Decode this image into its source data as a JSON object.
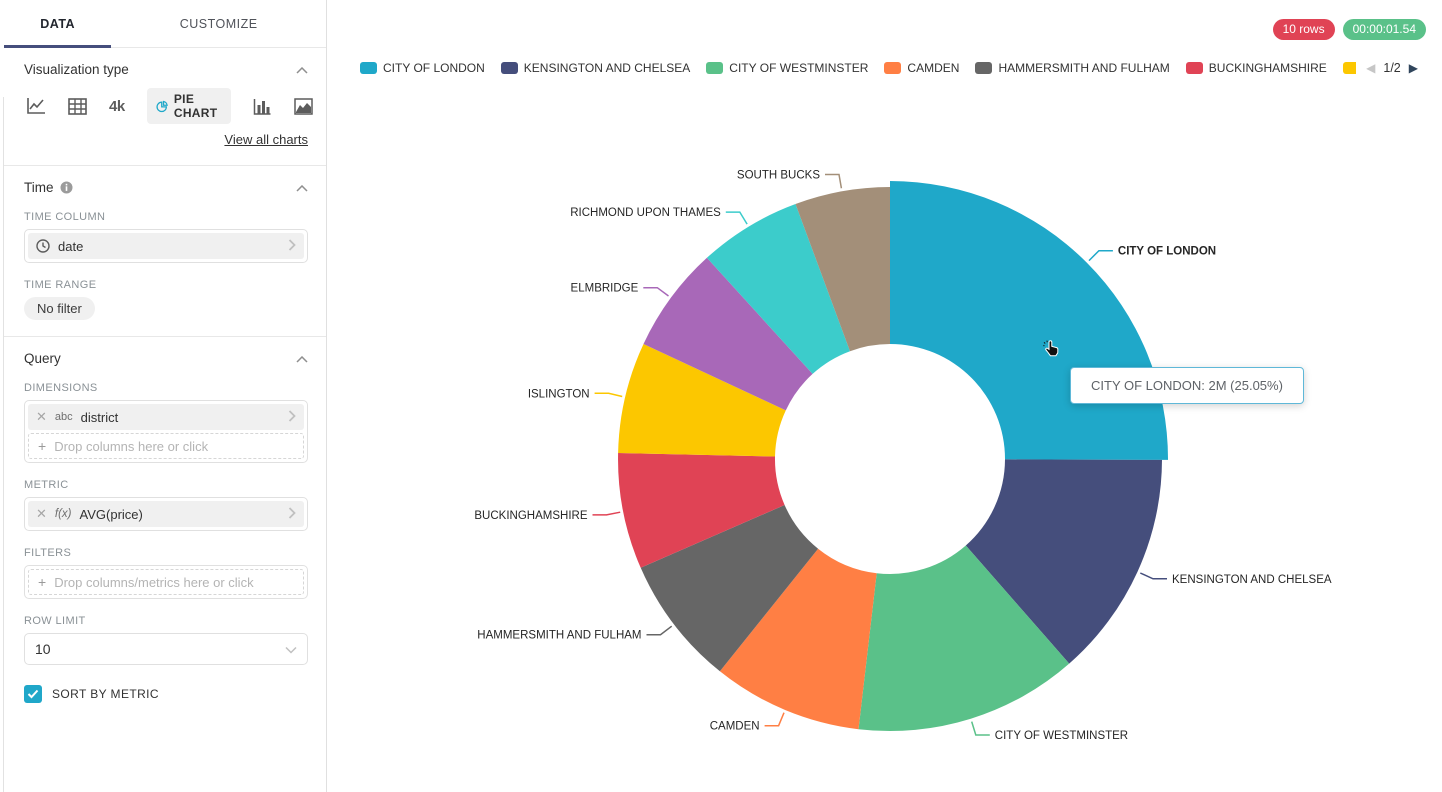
{
  "sidebar": {
    "tabs": [
      {
        "label": "DATA",
        "active": true
      },
      {
        "label": "CUSTOMIZE",
        "active": false
      }
    ],
    "viz_section": {
      "title": "Visualization type",
      "icons": [
        "line-chart-icon",
        "table-icon",
        "big-number-icon",
        "pie-chart-icon",
        "bar-chart-icon",
        "area-chart-icon"
      ],
      "big_number_label": "4k",
      "selected_chart": "PIE CHART",
      "view_all_label": "View all charts"
    },
    "time_section": {
      "title": "Time",
      "time_column_label": "TIME COLUMN",
      "time_column_value": "date",
      "time_range_label": "TIME RANGE",
      "time_range_value": "No filter"
    },
    "query_section": {
      "title": "Query",
      "dimensions_label": "DIMENSIONS",
      "dimension_chip": {
        "type_label": "abc",
        "value": "district"
      },
      "dimensions_placeholder": "Drop columns here or click",
      "metric_label": "METRIC",
      "metric_chip": {
        "type_label": "f(x)",
        "value": "AVG(price)"
      },
      "filters_label": "FILTERS",
      "filters_placeholder": "Drop columns/metrics here or click",
      "row_limit_label": "ROW LIMIT",
      "row_limit_value": "10",
      "sort_by_metric_label": "SORT BY METRIC",
      "sort_by_metric_checked": true
    }
  },
  "main": {
    "badges": {
      "rows": "10 rows",
      "rows_color": "#E04355",
      "duration": "00:00:01.54",
      "duration_color": "#5AC189"
    },
    "legend": {
      "page": "1/2",
      "visible_full_items": 6,
      "truncated_item_index": 6,
      "prev_icon": "prev-page-icon",
      "next_icon": "next-page-icon"
    },
    "tooltip": {
      "text": "CITY OF LONDON: 2M (25.05%)"
    },
    "cursor": "hand-pointer-cursor"
  },
  "chart_data": {
    "type": "pie",
    "donut": true,
    "dimension": "district",
    "metric": "AVG(price)",
    "legend_position": "top",
    "hovered": {
      "name": "CITY OF LONDON",
      "value_label": "2M",
      "percent": 25.05
    },
    "series": [
      {
        "name": "CITY OF LONDON",
        "percent": 25.05,
        "color": "#1FA8C9"
      },
      {
        "name": "KENSINGTON AND CHELSEA",
        "percent": 13.5,
        "color": "#454E7C"
      },
      {
        "name": "CITY OF WESTMINSTER",
        "percent": 13.3,
        "color": "#5AC189"
      },
      {
        "name": "CAMDEN",
        "percent": 8.9,
        "color": "#FF7F44"
      },
      {
        "name": "HAMMERSMITH AND FULHAM",
        "percent": 7.7,
        "color": "#666666"
      },
      {
        "name": "BUCKINGHAMSHIRE",
        "percent": 6.9,
        "color": "#E04355"
      },
      {
        "name": "ISLINGTON",
        "percent": 6.6,
        "color": "#FCC700"
      },
      {
        "name": "ELMBRIDGE",
        "percent": 6.3,
        "color": "#A868B8"
      },
      {
        "name": "RICHMOND UPON THAMES",
        "percent": 6.1,
        "color": "#3CCCCB"
      },
      {
        "name": "SOUTH BUCKS",
        "percent": 5.65,
        "color": "#A38F79"
      }
    ]
  }
}
